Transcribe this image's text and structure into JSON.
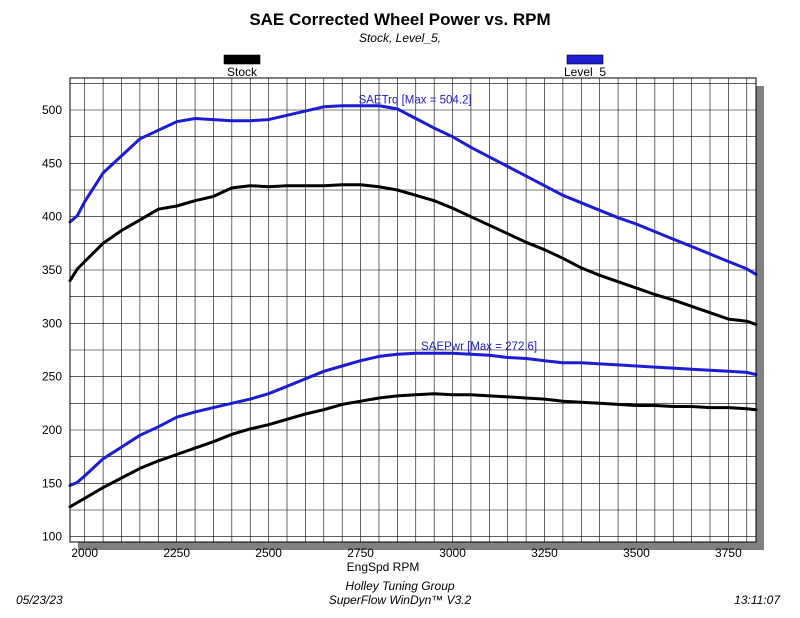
{
  "header": {
    "title": "SAE Corrected Wheel Power vs. RPM",
    "subtitle": "Stock, Level_5,"
  },
  "footer": {
    "company": "Holley Tuning Group",
    "software": "SuperFlow WinDyn™  V3.2",
    "date": "05/23/23",
    "time": "13:11:07"
  },
  "colors": {
    "stock": "#000000",
    "level5": "#1c1cd0",
    "grid": "#000000",
    "shadow": "#808080"
  },
  "chart_data": {
    "type": "line",
    "title": "SAE Corrected Wheel Power vs. RPM",
    "xlabel": "EngSpd RPM",
    "ylabel": "",
    "xlim": [
      1960,
      3825
    ],
    "ylim": [
      95,
      530
    ],
    "x_ticks": [
      2000,
      2250,
      2500,
      2750,
      3000,
      3250,
      3500,
      3750
    ],
    "y_ticks": [
      100,
      150,
      200,
      250,
      300,
      350,
      400,
      450,
      500
    ],
    "grid": true,
    "legend": [
      {
        "name": "Stock",
        "color": "#000000"
      },
      {
        "name": "Level_5",
        "color": "#1c1cd0"
      }
    ],
    "annotations": [
      {
        "text": "SAETrq [Max = 504.2]",
        "x": 2750,
        "y": 506
      },
      {
        "text": "SAEPwr [Max = 272.6]",
        "x": 2920,
        "y": 275
      }
    ],
    "series": [
      {
        "name": "Level_5",
        "quantity": "SAETrq",
        "color": "#1c1cd0",
        "x": [
          1960,
          1980,
          2000,
          2050,
          2100,
          2150,
          2200,
          2250,
          2300,
          2350,
          2400,
          2450,
          2500,
          2550,
          2600,
          2650,
          2700,
          2750,
          2800,
          2850,
          2900,
          2950,
          3000,
          3050,
          3100,
          3150,
          3200,
          3250,
          3300,
          3350,
          3400,
          3450,
          3500,
          3550,
          3600,
          3650,
          3700,
          3750,
          3800,
          3825
        ],
        "y": [
          395,
          401,
          414,
          441,
          457,
          473,
          481,
          489,
          492,
          491,
          490,
          490,
          491,
          495,
          499,
          503,
          504,
          504,
          504,
          501,
          492,
          483,
          475,
          465,
          456,
          447,
          438,
          429,
          420,
          413,
          406,
          399,
          393,
          386,
          379,
          372,
          365,
          358,
          351,
          346
        ]
      },
      {
        "name": "Stock",
        "quantity": "SAETrq",
        "color": "#000000",
        "x": [
          1960,
          1980,
          2000,
          2050,
          2100,
          2150,
          2200,
          2250,
          2300,
          2350,
          2400,
          2450,
          2500,
          2550,
          2600,
          2650,
          2700,
          2750,
          2800,
          2850,
          2900,
          2950,
          3000,
          3050,
          3100,
          3150,
          3200,
          3250,
          3300,
          3350,
          3400,
          3450,
          3500,
          3550,
          3600,
          3650,
          3700,
          3750,
          3800,
          3825
        ],
        "y": [
          340,
          351,
          358,
          375,
          387,
          397,
          407,
          410,
          415,
          419,
          427,
          429,
          428,
          429,
          429,
          429,
          430,
          430,
          428,
          425,
          420,
          415,
          408,
          400,
          392,
          384,
          376,
          369,
          361,
          352,
          345,
          339,
          333,
          327,
          322,
          316,
          310,
          304,
          302,
          299
        ]
      },
      {
        "name": "Level_5",
        "quantity": "SAEPwr",
        "color": "#1c1cd0",
        "x": [
          1960,
          1980,
          2000,
          2050,
          2100,
          2150,
          2200,
          2250,
          2300,
          2350,
          2400,
          2450,
          2500,
          2550,
          2600,
          2650,
          2700,
          2750,
          2800,
          2850,
          2900,
          2950,
          3000,
          3050,
          3100,
          3150,
          3200,
          3250,
          3300,
          3350,
          3400,
          3450,
          3500,
          3550,
          3600,
          3650,
          3700,
          3750,
          3800,
          3825
        ],
        "y": [
          148,
          151,
          157,
          173,
          184,
          195,
          203,
          212,
          217,
          221,
          225,
          229,
          234,
          241,
          248,
          255,
          260,
          265,
          269,
          271,
          272,
          272,
          272,
          271,
          270,
          268,
          267,
          265,
          263,
          263,
          262,
          261,
          260,
          259,
          258,
          257,
          256,
          255,
          254,
          252
        ]
      },
      {
        "name": "Stock",
        "quantity": "SAEPwr",
        "color": "#000000",
        "x": [
          1960,
          1980,
          2000,
          2050,
          2100,
          2150,
          2200,
          2250,
          2300,
          2350,
          2400,
          2450,
          2500,
          2550,
          2600,
          2650,
          2700,
          2750,
          2800,
          2850,
          2900,
          2950,
          3000,
          3050,
          3100,
          3150,
          3200,
          3250,
          3300,
          3350,
          3400,
          3450,
          3500,
          3550,
          3600,
          3650,
          3700,
          3750,
          3800,
          3825
        ],
        "y": [
          128,
          132,
          136,
          146,
          155,
          164,
          171,
          177,
          183,
          189,
          196,
          201,
          205,
          210,
          215,
          219,
          224,
          227,
          230,
          232,
          233,
          234,
          233,
          233,
          232,
          231,
          230,
          229,
          227,
          226,
          225,
          224,
          223,
          223,
          222,
          222,
          221,
          221,
          220,
          219
        ]
      }
    ]
  }
}
